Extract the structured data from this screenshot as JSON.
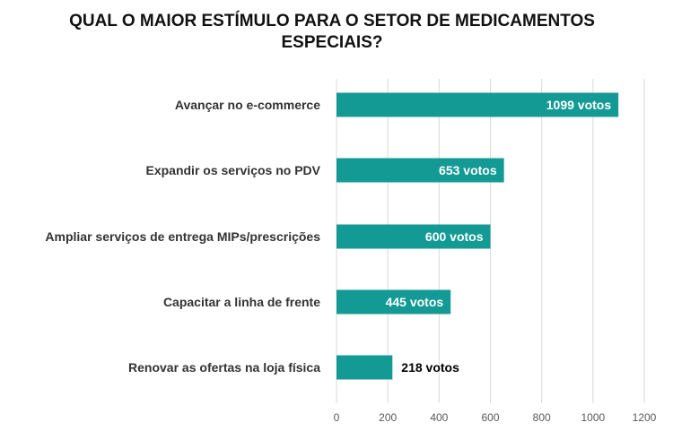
{
  "chart_data": {
    "type": "bar",
    "orientation": "horizontal",
    "title_lines": [
      "QUAL O MAIOR ESTÍMULO PARA O SETOR DE MEDICAMENTOS",
      "ESPECIAIS?"
    ],
    "categories": [
      "Avançar no e-commerce",
      "Expandir os serviços no PDV",
      "Ampliar serviços de entrega MIPs/prescrições",
      "Capacitar a linha de frente",
      "Renovar as ofertas na loja física"
    ],
    "values": [
      1099,
      653,
      600,
      445,
      218
    ],
    "data_labels": [
      "1099 votos",
      "653 votos",
      "600 votos",
      "445 votos",
      "218 votos"
    ],
    "xlim": [
      0,
      1200
    ],
    "x_ticks": [
      "0",
      "200",
      "400",
      "600",
      "800",
      "1000",
      "1200"
    ],
    "grid": "vertical",
    "colors": {
      "bar": "#139A94",
      "grid": "#D9D9D9",
      "label_inside": "#FFFFFF",
      "label_outside": "#000000",
      "category_text": "#333333",
      "tick_text": "#595959"
    }
  }
}
